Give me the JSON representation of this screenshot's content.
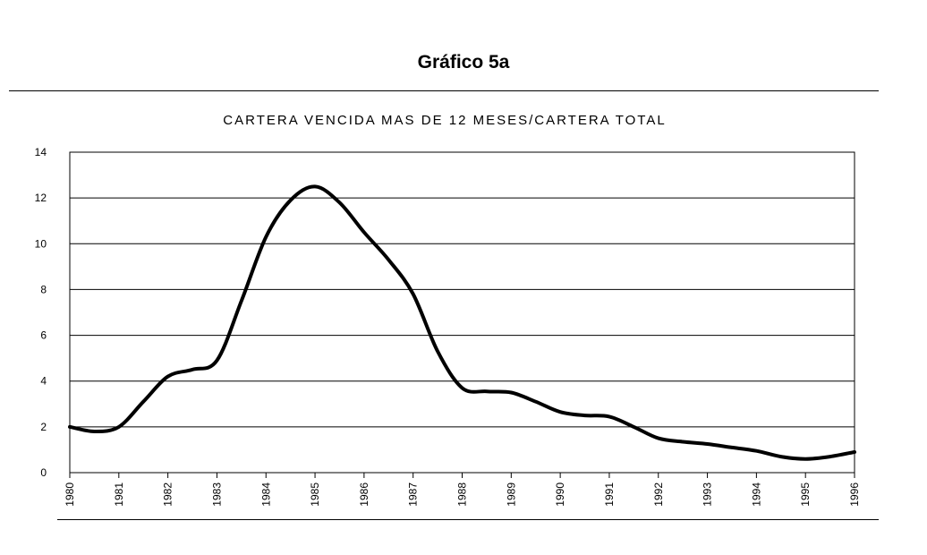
{
  "heading": "Gráfico 5a",
  "chart_data": {
    "type": "line",
    "title": "CARTERA VENCIDA MAS DE 12 MESES/CARTERA TOTAL",
    "xlabel": "",
    "ylabel": "",
    "ylim": [
      0,
      14
    ],
    "xlim": [
      1980,
      1996
    ],
    "y_ticks": [
      "0",
      "2",
      "4",
      "6",
      "8",
      "10",
      "12",
      "14"
    ],
    "x_ticks": [
      "1980",
      "1981",
      "1982",
      "1983",
      "1984",
      "1985",
      "1986",
      "1987",
      "1988",
      "1989",
      "1990",
      "1991",
      "1992",
      "1993",
      "1994",
      "1995",
      "1996"
    ],
    "grid": true,
    "legend": "none",
    "series": [
      {
        "color": "#000000",
        "x": [
          1980,
          1980.5,
          1981,
          1981.5,
          1982,
          1982.5,
          1983,
          1983.5,
          1984,
          1984.5,
          1985,
          1985.5,
          1986,
          1986.5,
          1987,
          1987.5,
          1988,
          1988.5,
          1989,
          1989.5,
          1990,
          1990.5,
          1991,
          1991.5,
          1992,
          1992.5,
          1993,
          1993.5,
          1994,
          1994.5,
          1995,
          1995.5,
          1996
        ],
        "y": [
          2.0,
          1.8,
          2.0,
          3.1,
          4.2,
          4.5,
          4.9,
          7.5,
          10.3,
          11.9,
          12.5,
          11.8,
          10.5,
          9.3,
          7.8,
          5.3,
          3.7,
          3.55,
          3.5,
          3.1,
          2.65,
          2.5,
          2.45,
          2.0,
          1.5,
          1.35,
          1.25,
          1.1,
          0.95,
          0.7,
          0.6,
          0.7,
          0.9
        ]
      }
    ]
  }
}
